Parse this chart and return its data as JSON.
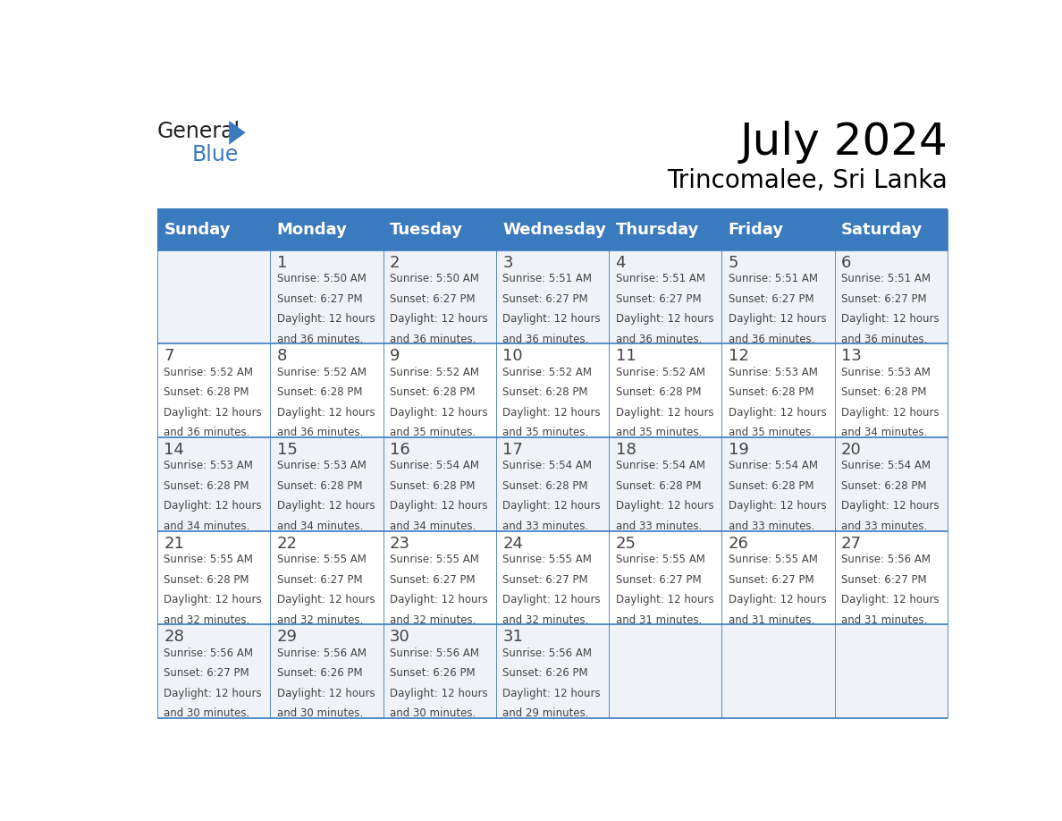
{
  "title": "July 2024",
  "subtitle": "Trincomalee, Sri Lanka",
  "days_of_week": [
    "Sunday",
    "Monday",
    "Tuesday",
    "Wednesday",
    "Thursday",
    "Friday",
    "Saturday"
  ],
  "header_bg": "#3a7abf",
  "header_text": "#ffffff",
  "cell_bg_even": "#eff3f8",
  "cell_bg_odd": "#ffffff",
  "grid_line_color": "#3a7abf",
  "text_color": "#444444",
  "calendar": [
    [
      {
        "day": null,
        "sunrise": null,
        "sunset": null,
        "daylight": null
      },
      {
        "day": 1,
        "sunrise": "5:50 AM",
        "sunset": "6:27 PM",
        "daylight": "12 hours and 36 minutes."
      },
      {
        "day": 2,
        "sunrise": "5:50 AM",
        "sunset": "6:27 PM",
        "daylight": "12 hours and 36 minutes."
      },
      {
        "day": 3,
        "sunrise": "5:51 AM",
        "sunset": "6:27 PM",
        "daylight": "12 hours and 36 minutes."
      },
      {
        "day": 4,
        "sunrise": "5:51 AM",
        "sunset": "6:27 PM",
        "daylight": "12 hours and 36 minutes."
      },
      {
        "day": 5,
        "sunrise": "5:51 AM",
        "sunset": "6:27 PM",
        "daylight": "12 hours and 36 minutes."
      },
      {
        "day": 6,
        "sunrise": "5:51 AM",
        "sunset": "6:27 PM",
        "daylight": "12 hours and 36 minutes."
      }
    ],
    [
      {
        "day": 7,
        "sunrise": "5:52 AM",
        "sunset": "6:28 PM",
        "daylight": "12 hours and 36 minutes."
      },
      {
        "day": 8,
        "sunrise": "5:52 AM",
        "sunset": "6:28 PM",
        "daylight": "12 hours and 36 minutes."
      },
      {
        "day": 9,
        "sunrise": "5:52 AM",
        "sunset": "6:28 PM",
        "daylight": "12 hours and 35 minutes."
      },
      {
        "day": 10,
        "sunrise": "5:52 AM",
        "sunset": "6:28 PM",
        "daylight": "12 hours and 35 minutes."
      },
      {
        "day": 11,
        "sunrise": "5:52 AM",
        "sunset": "6:28 PM",
        "daylight": "12 hours and 35 minutes."
      },
      {
        "day": 12,
        "sunrise": "5:53 AM",
        "sunset": "6:28 PM",
        "daylight": "12 hours and 35 minutes."
      },
      {
        "day": 13,
        "sunrise": "5:53 AM",
        "sunset": "6:28 PM",
        "daylight": "12 hours and 34 minutes."
      }
    ],
    [
      {
        "day": 14,
        "sunrise": "5:53 AM",
        "sunset": "6:28 PM",
        "daylight": "12 hours and 34 minutes."
      },
      {
        "day": 15,
        "sunrise": "5:53 AM",
        "sunset": "6:28 PM",
        "daylight": "12 hours and 34 minutes."
      },
      {
        "day": 16,
        "sunrise": "5:54 AM",
        "sunset": "6:28 PM",
        "daylight": "12 hours and 34 minutes."
      },
      {
        "day": 17,
        "sunrise": "5:54 AM",
        "sunset": "6:28 PM",
        "daylight": "12 hours and 33 minutes."
      },
      {
        "day": 18,
        "sunrise": "5:54 AM",
        "sunset": "6:28 PM",
        "daylight": "12 hours and 33 minutes."
      },
      {
        "day": 19,
        "sunrise": "5:54 AM",
        "sunset": "6:28 PM",
        "daylight": "12 hours and 33 minutes."
      },
      {
        "day": 20,
        "sunrise": "5:54 AM",
        "sunset": "6:28 PM",
        "daylight": "12 hours and 33 minutes."
      }
    ],
    [
      {
        "day": 21,
        "sunrise": "5:55 AM",
        "sunset": "6:28 PM",
        "daylight": "12 hours and 32 minutes."
      },
      {
        "day": 22,
        "sunrise": "5:55 AM",
        "sunset": "6:27 PM",
        "daylight": "12 hours and 32 minutes."
      },
      {
        "day": 23,
        "sunrise": "5:55 AM",
        "sunset": "6:27 PM",
        "daylight": "12 hours and 32 minutes."
      },
      {
        "day": 24,
        "sunrise": "5:55 AM",
        "sunset": "6:27 PM",
        "daylight": "12 hours and 32 minutes."
      },
      {
        "day": 25,
        "sunrise": "5:55 AM",
        "sunset": "6:27 PM",
        "daylight": "12 hours and 31 minutes."
      },
      {
        "day": 26,
        "sunrise": "5:55 AM",
        "sunset": "6:27 PM",
        "daylight": "12 hours and 31 minutes."
      },
      {
        "day": 27,
        "sunrise": "5:56 AM",
        "sunset": "6:27 PM",
        "daylight": "12 hours and 31 minutes."
      }
    ],
    [
      {
        "day": 28,
        "sunrise": "5:56 AM",
        "sunset": "6:27 PM",
        "daylight": "12 hours and 30 minutes."
      },
      {
        "day": 29,
        "sunrise": "5:56 AM",
        "sunset": "6:26 PM",
        "daylight": "12 hours and 30 minutes."
      },
      {
        "day": 30,
        "sunrise": "5:56 AM",
        "sunset": "6:26 PM",
        "daylight": "12 hours and 30 minutes."
      },
      {
        "day": 31,
        "sunrise": "5:56 AM",
        "sunset": "6:26 PM",
        "daylight": "12 hours and 29 minutes."
      },
      {
        "day": null,
        "sunrise": null,
        "sunset": null,
        "daylight": null
      },
      {
        "day": null,
        "sunrise": null,
        "sunset": null,
        "daylight": null
      },
      {
        "day": null,
        "sunrise": null,
        "sunset": null,
        "daylight": null
      }
    ]
  ],
  "logo_color_general": "#222222",
  "logo_color_blue": "#3a7abf",
  "logo_triangle_color": "#3a7abf"
}
